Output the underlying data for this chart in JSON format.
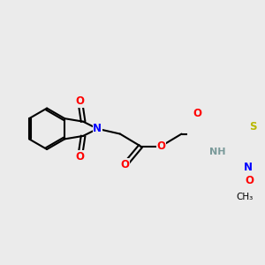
{
  "background_color": "#ebebeb",
  "bond_color": "#000000",
  "bond_width": 1.5,
  "atom_colors": {
    "N": "#0000ff",
    "O": "#ff0000",
    "S": "#b8b800",
    "H": "#7a9a9a",
    "C": "#000000"
  },
  "font_size_atom": 8.5,
  "figsize": [
    3.0,
    3.0
  ],
  "dpi": 100
}
